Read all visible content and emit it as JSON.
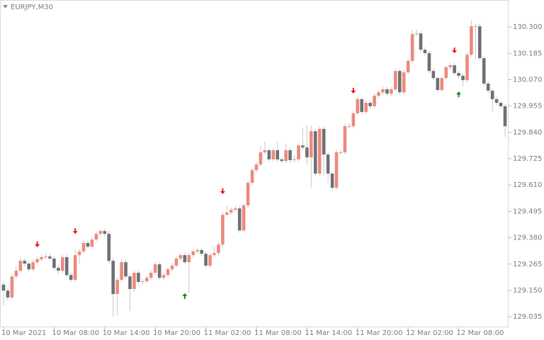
{
  "chart_data": {
    "type": "candlestick",
    "title": "EURJPY,M30",
    "up_color": "#ec8a7c",
    "down_color": "#6d7075",
    "wick_color": "#c8c8cc",
    "ylim": [
      128.989,
      130.418
    ],
    "yticks": [
      {
        "value": 130.3,
        "label": "130.300"
      },
      {
        "value": 130.185,
        "label": "130.185"
      },
      {
        "value": 130.07,
        "label": "130.070"
      },
      {
        "value": 129.955,
        "label": "129.955"
      },
      {
        "value": 129.84,
        "label": "129.840"
      },
      {
        "value": 129.725,
        "label": "129.725"
      },
      {
        "value": 129.61,
        "label": "129.610"
      },
      {
        "value": 129.495,
        "label": "129.495"
      },
      {
        "value": 129.38,
        "label": "129.380"
      },
      {
        "value": 129.265,
        "label": "129.265"
      },
      {
        "value": 129.15,
        "label": "129.150"
      },
      {
        "value": 129.035,
        "label": "129.035"
      }
    ],
    "xticks": [
      {
        "value": 0,
        "label": "10 Mar 2021"
      },
      {
        "value": 12,
        "label": "10 Mar 08:00"
      },
      {
        "value": 24,
        "label": "10 Mar 14:00"
      },
      {
        "value": 36,
        "label": "10 Mar 20:00"
      },
      {
        "value": 48,
        "label": "11 Mar 02:00"
      },
      {
        "value": 60,
        "label": "11 Mar 08:00"
      },
      {
        "value": 72,
        "label": "11 Mar 14:00"
      },
      {
        "value": 84,
        "label": "11 Mar 20:00"
      },
      {
        "value": 96,
        "label": "12 Mar 02:00"
      },
      {
        "value": 108,
        "label": "12 Mar 08:00"
      }
    ],
    "open": [
      129.175,
      129.149,
      129.119,
      129.211,
      129.236,
      129.279,
      129.267,
      129.242,
      129.273,
      129.286,
      129.295,
      129.298,
      129.289,
      129.248,
      129.236,
      129.295,
      129.217,
      129.196,
      129.304,
      129.32,
      129.357,
      129.341,
      129.372,
      129.397,
      129.409,
      129.397,
      129.279,
      129.134,
      129.196,
      129.273,
      129.211,
      129.156,
      129.227,
      129.187,
      129.19,
      129.205,
      129.227,
      129.264,
      129.205,
      129.217,
      129.242,
      129.258,
      129.289,
      129.304,
      129.273,
      129.304,
      129.32,
      129.326,
      129.31,
      129.258,
      129.304,
      129.313,
      129.35,
      129.48,
      129.49,
      129.502,
      129.508,
      129.412,
      129.521,
      129.62,
      129.675,
      129.7,
      129.753,
      129.762,
      129.722,
      129.762,
      129.722,
      129.715,
      129.762,
      129.719,
      129.722,
      129.783,
      129.774,
      129.731,
      129.845,
      129.66,
      129.855,
      129.743,
      129.66,
      129.598,
      129.753,
      129.753,
      129.867,
      129.867,
      129.923,
      129.985,
      129.929,
      129.969,
      129.954,
      130.0,
      130.015,
      130.028,
      130.009,
      130.028,
      130.108,
      130.015,
      130.102,
      130.152,
      130.269,
      130.272,
      130.201,
      130.186,
      130.108,
      130.077,
      130.025,
      130.077,
      130.124,
      130.133,
      130.099,
      130.087,
      130.068,
      130.179,
      130.303,
      130.303,
      130.164,
      130.053,
      130.022,
      129.985,
      129.969,
      129.954
    ],
    "high": [
      129.19,
      129.16,
      129.222,
      129.255,
      129.29,
      129.29,
      129.278,
      129.285,
      129.298,
      129.306,
      129.312,
      129.31,
      129.3,
      129.262,
      129.306,
      129.306,
      129.228,
      129.33,
      129.332,
      129.368,
      129.37,
      129.384,
      129.408,
      129.418,
      129.42,
      129.41,
      129.29,
      129.207,
      129.284,
      129.284,
      129.222,
      129.238,
      129.238,
      129.201,
      129.216,
      129.238,
      129.275,
      129.275,
      129.228,
      129.253,
      129.269,
      129.3,
      129.315,
      129.315,
      129.315,
      129.331,
      129.337,
      129.337,
      129.321,
      129.315,
      129.34,
      129.361,
      129.491,
      129.52,
      129.513,
      129.519,
      129.519,
      129.532,
      129.631,
      129.686,
      129.711,
      129.78,
      129.8,
      129.773,
      129.773,
      129.8,
      129.733,
      129.79,
      129.773,
      129.74,
      129.794,
      129.86,
      129.87,
      129.87,
      129.856,
      129.866,
      129.866,
      129.754,
      129.671,
      129.764,
      129.764,
      129.878,
      129.88,
      129.934,
      129.996,
      129.996,
      129.98,
      129.98,
      130.011,
      130.026,
      130.039,
      130.039,
      130.039,
      130.119,
      130.119,
      130.113,
      130.163,
      130.29,
      130.29,
      130.283,
      130.212,
      130.197,
      130.119,
      130.088,
      130.088,
      130.135,
      130.144,
      130.144,
      130.11,
      130.098,
      130.19,
      130.33,
      130.314,
      130.314,
      130.175,
      130.064,
      130.033,
      129.996,
      129.98,
      129.965
    ],
    "low": [
      129.085,
      129.105,
      129.11,
      129.2,
      129.225,
      129.255,
      129.232,
      129.232,
      129.262,
      129.276,
      129.285,
      129.278,
      129.236,
      129.222,
      129.226,
      129.205,
      129.185,
      129.186,
      129.265,
      129.31,
      129.33,
      129.331,
      129.362,
      129.387,
      129.385,
      129.268,
      129.035,
      129.04,
      129.186,
      129.2,
      129.06,
      129.145,
      129.176,
      129.176,
      129.18,
      129.195,
      129.216,
      129.194,
      129.195,
      129.207,
      129.232,
      129.248,
      129.279,
      129.262,
      129.14,
      129.294,
      129.31,
      129.299,
      129.247,
      129.248,
      129.294,
      129.303,
      129.34,
      129.47,
      129.48,
      129.492,
      129.401,
      129.402,
      129.511,
      129.61,
      129.665,
      129.69,
      129.743,
      129.711,
      129.712,
      129.711,
      129.704,
      129.705,
      129.708,
      129.708,
      129.712,
      129.763,
      129.7,
      129.6,
      129.65,
      129.65,
      129.65,
      129.62,
      129.587,
      129.588,
      129.742,
      129.743,
      129.856,
      129.857,
      129.913,
      129.918,
      129.919,
      129.943,
      129.944,
      129.99,
      130.005,
      129.998,
      129.999,
      130.018,
      130.004,
      130.005,
      130.092,
      130.142,
      130.259,
      130.19,
      130.175,
      130.097,
      130.066,
      130.014,
      130.015,
      130.067,
      130.114,
      130.088,
      130.076,
      130.04,
      130.058,
      130.169,
      130.16,
      130.153,
      130.042,
      130.011,
      129.93,
      129.958,
      129.943,
      129.82
    ],
    "close": [
      129.149,
      129.119,
      129.211,
      129.236,
      129.279,
      129.267,
      129.242,
      129.273,
      129.286,
      129.295,
      129.298,
      129.289,
      129.248,
      129.236,
      129.295,
      129.217,
      129.196,
      129.304,
      129.32,
      129.357,
      129.341,
      129.372,
      129.397,
      129.409,
      129.397,
      129.279,
      129.134,
      129.196,
      129.273,
      129.211,
      129.156,
      129.227,
      129.187,
      129.19,
      129.205,
      129.227,
      129.264,
      129.205,
      129.217,
      129.242,
      129.258,
      129.289,
      129.304,
      129.273,
      129.304,
      129.32,
      129.326,
      129.31,
      129.258,
      129.304,
      129.313,
      129.35,
      129.48,
      129.49,
      129.502,
      129.508,
      129.412,
      129.521,
      129.62,
      129.675,
      129.7,
      129.753,
      129.762,
      129.722,
      129.762,
      129.722,
      129.715,
      129.762,
      129.719,
      129.722,
      129.783,
      129.774,
      129.731,
      129.845,
      129.66,
      129.855,
      129.743,
      129.66,
      129.598,
      129.753,
      129.753,
      129.867,
      129.867,
      129.923,
      129.985,
      129.929,
      129.969,
      129.954,
      130.0,
      130.015,
      130.028,
      130.009,
      130.028,
      130.108,
      130.015,
      130.102,
      130.152,
      130.269,
      130.272,
      130.201,
      130.186,
      130.108,
      130.077,
      130.025,
      130.077,
      130.124,
      130.133,
      130.099,
      130.087,
      130.068,
      130.179,
      130.303,
      130.303,
      130.164,
      130.053,
      130.022,
      129.985,
      129.969,
      129.954,
      129.867
    ],
    "sell_signals": {
      "color": "#e8141c",
      "x": [
        8,
        17,
        52,
        83,
        107
      ],
      "y": [
        129.351,
        129.409,
        129.583,
        130.022,
        130.198
      ]
    },
    "buy_signals": {
      "color": "#0a8a16",
      "x": [
        43,
        108
      ],
      "y": [
        129.125,
        130.006
      ]
    }
  }
}
